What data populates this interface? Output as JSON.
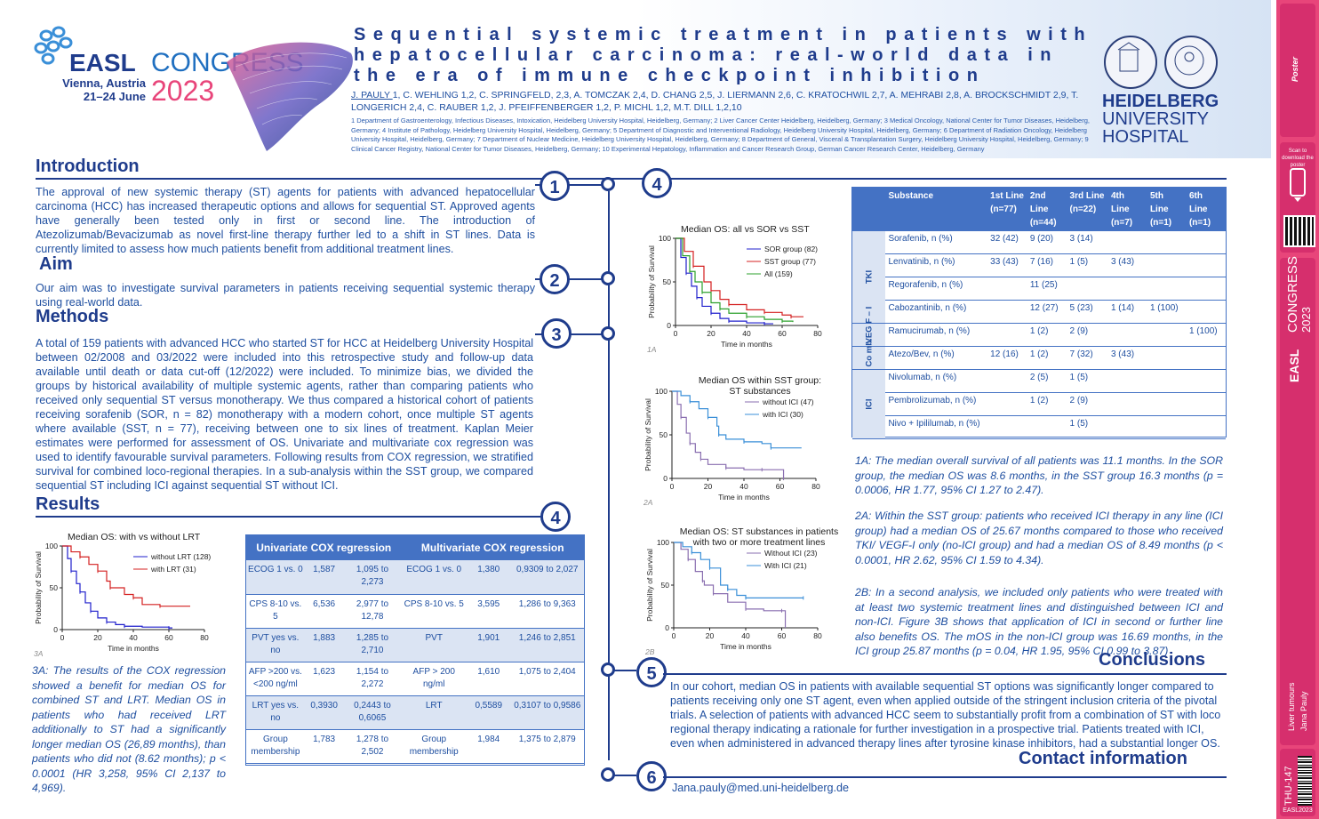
{
  "header": {
    "easl_word": "EASL",
    "congress_word": "CONGRESS",
    "location_line1": "Vienna, Austria",
    "location_line2": "21–24 June",
    "year": "2023",
    "title": "Sequential systemic treatment in patients with hepatocellular carcinoma: real-world data in the era of immune checkpoint inhibition",
    "authors_lead": "J. PAULY ",
    "authors_rest": "1, C. WEHLING 1,2, C. SPRINGFELD, 2,3, A. TOMCZAK 2,4, D. CHANG 2,5, J. LIERMANN 2,6, C. KRATOCHWIL 2,7, A. MEHRABI 2,8, A. BROCKSCHMIDT 2,9, T. LONGERICH 2,4, C. RAUBER 1,2, J. PFEIFFENBERGER 1,2, P. MICHL 1,2, M.T. DILL 1,2,10",
    "affiliations": "1 Department of Gastroenterology, Infectious Diseases, Intoxication, Heidelberg University Hospital, Heidelberg, Germany; 2 Liver Cancer Center Heidelberg, Heidelberg, Germany; 3 Medical Oncology, National Center for Tumor Diseases, Heidelberg, Germany; 4 Institute of Pathology, Heidelberg University Hospital, Heidelberg, Germany; 5 Department of Diagnostic and Interventional Radiology, Heidelberg University Hospital, Heidelberg, Germany; 6 Department of Radiation Oncology, Heidelberg University Hospital, Heidelberg, Germany; 7 Department of Nuclear Medicine, Heidelberg University Hospital, Heidelberg, Germany; 8 Department of General, Visceral & Transplantation Surgery, Heidelberg University Hospital, Heidelberg, Germany; 9 Clinical Cancer Registry, National Center for Tumor Diseases, Heidelberg, Germany; 10 Experimental Hepatology, Inflammation and Cancer Research Group, German Cancer Research Center, Heidelberg, Germany",
    "hospital_line1": "HEIDELBERG",
    "hospital_line2": "UNIVERSITY",
    "hospital_line3": "HOSPITAL"
  },
  "sections": {
    "intro_title": "Introduction",
    "intro_text": "The approval of new systemic therapy (ST) agents for patients with advanced hepatocellular carcinoma (HCC) has increased therapeutic options and allows for sequential ST. Approved agents have generally been tested only in first or second line. The introduction of Atezolizumab/Bevacizumab as novel first-line therapy further led to a shift in ST lines. Data is currently limited to assess how much patients benefit from additional treatment lines.",
    "aim_title": "Aim",
    "aim_text": "Our aim was to investigate survival parameters in patients receiving sequential systemic therapy using real-world data.",
    "methods_title": "Methods",
    "methods_text": "A total of 159 patients with advanced HCC who started ST for HCC at Heidelberg University Hospital between 02/2008 and 03/2022 were included into this retrospective study and follow-up data available until death or data cut-off (12/2022) were included. To minimize bias, we divided the groups by historical availability of multiple systemic agents, rather than comparing patients who received only sequential ST versus monotherapy. We thus compared a historical cohort of patients receiving sorafenib (SOR, n = 82) monotherapy with a modern cohort, once multiple ST agents where available (SST, n = 77), receiving between one to six lines of treatment. Kaplan Meier estimates were performed for assessment of OS. Univariate and multivariate cox regression was used to identify favourable survival parameters. Following results from COX regression, we stratified survival for combined loco-regional therapies. In a sub-analysis within the SST group, we compared sequential ST including ICI against sequential ST without ICI.",
    "results_title": "Results",
    "note_3a": "3A: The results of the COX regression showed a benefit for median OS for combined ST and LRT. Median OS in patients who had received LRT additionally to ST had a significantly longer median OS (26,89 months), than patients who did not (8.62 months); p < 0.0001 (HR 3,258, 95% CI 2,137 to 4,969).",
    "note_1a": "1A: The median overall survival of all patients was 11.1 months. In the SOR group, the median OS was 8.6 months, in the SST group 16.3 months (p = 0.0006, HR 1.77, 95% CI 1.27 to 2.47).",
    "note_2a": "2A: Within the SST group: patients who received ICI therapy in any line (ICI group) had a median OS of 25.67 months compared to those who received TKI/ VEGF-I only (no-ICI group) and had a median OS of 8.49 months (p < 0.0001, HR 2.62, 95% CI 1.59 to 4.34).",
    "note_2b": "2B: In a second analysis, we included only patients who were treated with at least two systemic treatment lines and distinguished between ICI and non-ICI. Figure 3B shows that application of ICI in second or further line also benefits OS. The mOS in the non-ICI group was 16.69 months, in the ICI group 25.87 months (p = 0.04, HR 1.95, 95% CI 0.99 to 3.87)",
    "conclusions_title": "Conclusions",
    "conclusions_text": "In our cohort, median OS in patients with available sequential ST options was significantly longer compared to patients receiving only one ST agent, even when applied outside of the stringent inclusion criteria of the pivotal trials. A selection of patients with advanced HCC seem to substantially profit from a combination of ST with loco regional therapy indicating a rationale for further investigation in a prospective trial. Patients treated with ICI, even when administered in advanced therapy lines after tyrosine kinase inhibitors, had a substantial longer OS.",
    "contact_title": "Contact information",
    "contact_email": "Jana.pauly@med.uni-heidelberg.de"
  },
  "step_numbers": [
    "1",
    "2",
    "3",
    "4",
    "4",
    "5",
    "6"
  ],
  "cox_table": {
    "header_uni": "Univariate COX regression",
    "header_multi": "Multivariate COX regression",
    "rows": [
      [
        "ECOG 1 vs. 0",
        "1,587",
        "1,095 to 2,273",
        "ECOG 1 vs. 0",
        "1,380",
        "0,9309 to 2,027"
      ],
      [
        "CPS 8-10 vs. 5",
        "6,536",
        "2,977 to 12,78",
        "CPS 8-10 vs. 5",
        "3,595",
        "1,286 to 9,363"
      ],
      [
        "PVT yes vs. no",
        "1,883",
        "1,285 to 2,710",
        "PVT",
        "1,901",
        "1,246 to 2,851"
      ],
      [
        "AFP >200 vs. <200 ng/ml",
        "1,623",
        "1,154 to 2,272",
        "AFP > 200 ng/ml",
        "1,610",
        "1,075 to 2,404"
      ],
      [
        "LRT yes vs. no",
        "0,3930",
        "0,2443 to 0,6065",
        "LRT",
        "0,5589",
        "0,3107 to 0,9586"
      ],
      [
        "Group membership",
        "1,783",
        "1,278 to 2,502",
        "Group membership",
        "1,984",
        "1,375 to 2,879"
      ]
    ]
  },
  "substance_table": {
    "headers": [
      "Substance",
      "1st Line (n=77)",
      "2nd Line (n=44)",
      "3rd Line (n=22)",
      "4th Line (n=7)",
      "5th Line (n=1)",
      "6th Line (n=1)"
    ],
    "groups": [
      {
        "label": "TKI",
        "rows": [
          [
            "Sorafenib, n (%)",
            "32 (42)",
            "9 (20)",
            "3 (14)",
            "",
            "",
            ""
          ],
          [
            "Lenvatinib, n (%)",
            "33 (43)",
            "7 (16)",
            "1 (5)",
            "3 (43)",
            "",
            ""
          ],
          [
            "Regorafenib, n (%)",
            "",
            "11 (25)",
            "",
            "",
            "",
            ""
          ],
          [
            "Cabozantinib, n (%)",
            "",
            "12 (27)",
            "5 (23)",
            "1 (14)",
            "1 (100)",
            ""
          ]
        ]
      },
      {
        "label": "VEG F – I",
        "rows": [
          [
            "Ramucirumab, n (%)",
            "",
            "1 (2)",
            "2 (9)",
            "",
            "",
            "1 (100)"
          ]
        ]
      },
      {
        "label": "Co mb.",
        "rows": [
          [
            "Atezo/Bev, n (%)",
            "12 (16)",
            "1 (2)",
            "7 (32)",
            "3 (43)",
            "",
            ""
          ]
        ]
      },
      {
        "label": "ICI",
        "rows": [
          [
            "Nivolumab, n (%)",
            "",
            "2 (5)",
            "1 (5)",
            "",
            "",
            ""
          ],
          [
            "Pembrolizumab, n (%)",
            "",
            "1 (2)",
            "2 (9)",
            "",
            "",
            ""
          ],
          [
            "Nivo + Ipililumab, n (%)",
            "",
            "",
            "1 (5)",
            "",
            "",
            ""
          ]
        ]
      }
    ]
  },
  "sidebar": {
    "scan_text": "Scan to download the poster",
    "congress": "CONGRESS",
    "year": "2023",
    "topic": "Liver tumours",
    "author": "Jana Pauly",
    "code": "THU-147",
    "footer": "EASL2023"
  },
  "colors": {
    "navy": "#1f3c8c",
    "accent_pink": "#e8457a",
    "table_blue": "#4472c4",
    "sor": "#1f1fcc",
    "sst": "#d42020",
    "all": "#2ca02c",
    "ici": "#3a8fd8",
    "noici": "#8a6fb0"
  },
  "chart_data": [
    {
      "id": "3A",
      "type": "line",
      "label": "3A",
      "title": "Median  OS: with vs without LRT",
      "xlabel": "Time in months",
      "ylabel": "Probability of Survival",
      "xlim": [
        0,
        80
      ],
      "ylim": [
        0,
        100
      ],
      "xticks": [
        0,
        20,
        40,
        60,
        80
      ],
      "yticks": [
        0,
        50,
        100
      ],
      "series": [
        {
          "name": "without LRT (128)",
          "color": "#1f1fcc",
          "x": [
            0,
            3,
            5,
            8,
            10,
            13,
            16,
            20,
            25,
            30,
            35,
            45,
            60,
            62
          ],
          "y": [
            100,
            85,
            70,
            55,
            45,
            32,
            22,
            14,
            9,
            6,
            4,
            3,
            2,
            2
          ]
        },
        {
          "name": "with LRT (31)",
          "color": "#d42020",
          "x": [
            0,
            5,
            10,
            15,
            20,
            25,
            27,
            35,
            40,
            45,
            55,
            72
          ],
          "y": [
            100,
            93,
            87,
            78,
            70,
            58,
            50,
            42,
            38,
            30,
            28,
            28
          ]
        }
      ]
    },
    {
      "id": "1A",
      "type": "line",
      "label": "1A",
      "title": "Median  OS: all vs SOR vs SST",
      "xlabel": "Time in months",
      "ylabel": "Probability of Survival",
      "xlim": [
        0,
        80
      ],
      "ylim": [
        0,
        100
      ],
      "xticks": [
        0,
        20,
        40,
        60,
        80
      ],
      "yticks": [
        0,
        50,
        100
      ],
      "series": [
        {
          "name": "SOR group (82)",
          "color": "#1f1fcc",
          "x": [
            0,
            3,
            6,
            9,
            12,
            15,
            20,
            25,
            30,
            40,
            50,
            55
          ],
          "y": [
            100,
            78,
            60,
            45,
            32,
            22,
            14,
            8,
            5,
            3,
            2,
            2
          ]
        },
        {
          "name": "SST group (77)",
          "color": "#d42020",
          "x": [
            0,
            5,
            10,
            16,
            20,
            25,
            30,
            40,
            50,
            60,
            65,
            72
          ],
          "y": [
            100,
            85,
            68,
            50,
            40,
            30,
            24,
            18,
            15,
            12,
            10,
            10
          ]
        },
        {
          "name": "All (159)",
          "color": "#2ca02c",
          "x": [
            0,
            4,
            8,
            11,
            15,
            20,
            25,
            30,
            40,
            50,
            60,
            66
          ],
          "y": [
            100,
            80,
            62,
            50,
            38,
            26,
            19,
            14,
            10,
            7,
            5,
            4
          ]
        }
      ]
    },
    {
      "id": "2A",
      "type": "line",
      "label": "2A",
      "title": "Median OS within SST group: ST substances",
      "xlabel": "Time in months",
      "ylabel": "Probability of Survival",
      "xlim": [
        0,
        80
      ],
      "ylim": [
        0,
        100
      ],
      "xticks": [
        0,
        20,
        40,
        60,
        80
      ],
      "yticks": [
        0,
        50,
        100
      ],
      "series": [
        {
          "name": "without ICI  (47)",
          "color": "#8a6fb0",
          "x": [
            0,
            3,
            5,
            8,
            10,
            13,
            16,
            20,
            30,
            40,
            50,
            60,
            62
          ],
          "y": [
            100,
            85,
            70,
            52,
            40,
            30,
            22,
            16,
            12,
            10,
            10,
            10,
            0
          ]
        },
        {
          "name": "with ICI (30)",
          "color": "#3a8fd8",
          "x": [
            0,
            5,
            10,
            15,
            20,
            25,
            26,
            30,
            40,
            50,
            55,
            72
          ],
          "y": [
            100,
            95,
            88,
            80,
            70,
            60,
            50,
            45,
            42,
            40,
            35,
            35
          ]
        }
      ]
    },
    {
      "id": "2B",
      "type": "line",
      "label": "2B",
      "title": "Median OS: ST substances in patients with two or more treatment lines",
      "xlabel": "Time in months",
      "ylabel": "Probability of Survival",
      "xlim": [
        0,
        80
      ],
      "ylim": [
        0,
        100
      ],
      "xticks": [
        0,
        20,
        40,
        60,
        80
      ],
      "yticks": [
        0,
        50,
        100
      ],
      "series": [
        {
          "name": "Without ICI (23)",
          "color": "#8a6fb0",
          "x": [
            0,
            4,
            8,
            12,
            16,
            17,
            22,
            30,
            40,
            50,
            60,
            62
          ],
          "y": [
            100,
            92,
            80,
            66,
            55,
            50,
            40,
            30,
            22,
            20,
            20,
            0
          ]
        },
        {
          "name": "With ICI (21)",
          "color": "#3a8fd8",
          "x": [
            0,
            5,
            10,
            15,
            20,
            26,
            30,
            35,
            40,
            55,
            72
          ],
          "y": [
            100,
            95,
            88,
            80,
            70,
            50,
            45,
            38,
            35,
            35,
            35
          ]
        }
      ]
    }
  ]
}
